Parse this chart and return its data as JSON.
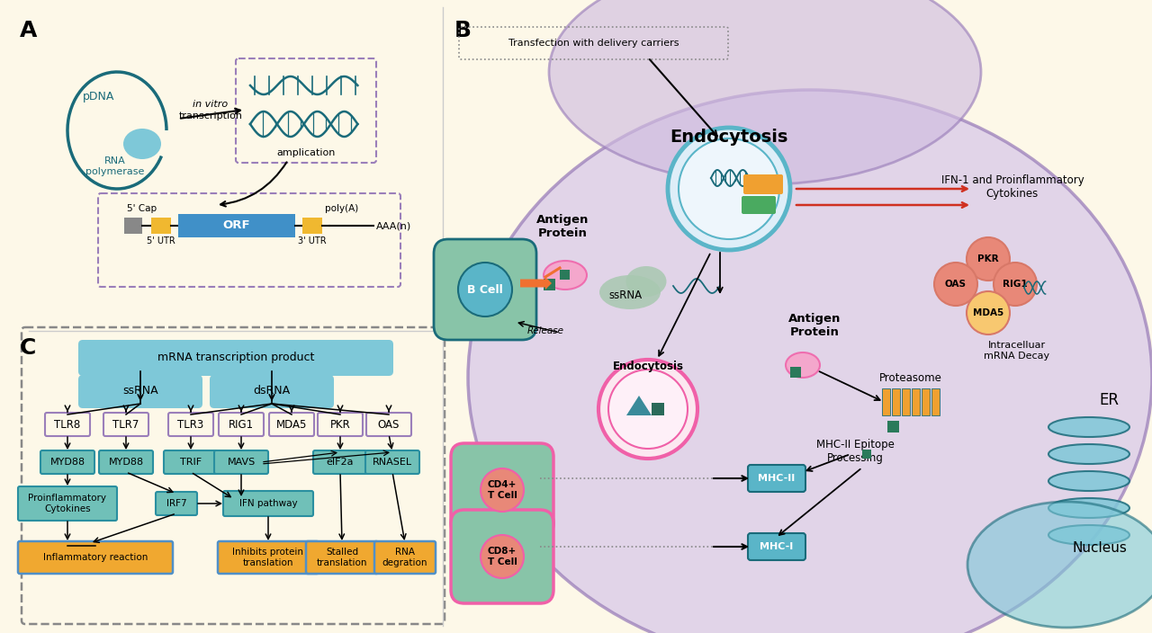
{
  "bg_color": "#fdf8e8",
  "colors": {
    "teal_dark": "#1a6b7a",
    "teal_medium": "#2a8fa0",
    "blue_light": "#7ec8d8",
    "blue_cell": "#5ab5c8",
    "purple_light": "#c4a8d8",
    "purple_medium": "#9b7fba",
    "purple_dark": "#6a4a9b",
    "purple_cell": "#b89fd0",
    "green_cell": "#88c4a8",
    "green_light": "#a8d4b8",
    "pink_bright": "#f060a8",
    "pink_light": "#f8a0c8",
    "orange_amber": "#f0a030",
    "orange_light": "#f8c870",
    "blue_orf": "#4090c8",
    "yellow_utr": "#f0b830",
    "red_arrow": "#d03020",
    "salmon": "#e88878",
    "box_teal": "#70c0b8",
    "box_purple": "#b898d8",
    "box_orange": "#f0a830",
    "box_blue": "#5090c8"
  },
  "pdna_label": "pDNA",
  "rna_pol_label": "RNA\npolymerase",
  "cap5_label": "5' Cap",
  "orf_label": "ORF",
  "polyA_label": "poly(A)",
  "utr5_label": "5' UTR",
  "utr3_label": "3' UTR",
  "AAA_label": "AAA(n)",
  "endocytosis_label": "Endocytosis",
  "transfection_label": "Transfection with delivery carriers",
  "antigen_protein_label": "Antigen\nProtein",
  "ssRNA_label": "ssRNA",
  "release_label": "Release",
  "antigen_protein2_label": "Antigen\nProtein",
  "proteasome_label": "Proteasome",
  "mhcII_label": "MHC-II",
  "mhcI_label": "MHC-I",
  "mhcII_epi_label": "MHC-II Epitope\nProcessing",
  "cd4_label": "CD4+\nT Cell",
  "cd8_label": "CD8+\nT Cell",
  "bcell_label": "B Cell",
  "tlr78_label": "TLR7/8",
  "tlr3_label": "TLR3",
  "ifn_label": "IFN-1 and Proinflammatory\nCytokines",
  "intracellular_label": "Intracelluar\nmRNA Decay",
  "er_label": "ER",
  "nucleus_label": "Nucleus",
  "panel_C_top_box": "mRNA transcription product",
  "panel_C_ssRNA": "ssRNA",
  "panel_C_dsRNA": "dsRNA"
}
